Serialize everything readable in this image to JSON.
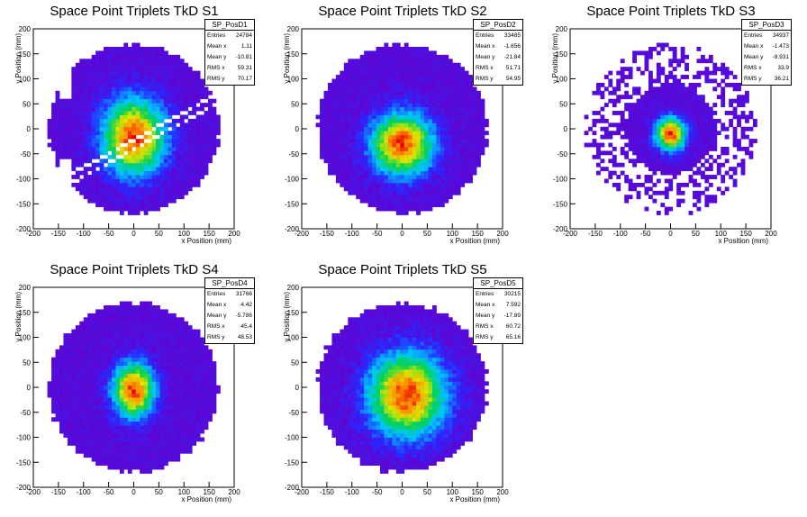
{
  "chart_data": [
    {
      "type": "heatmap",
      "title": "Space Point Triplets TkD S1",
      "xlabel": "x Position (mm)",
      "ylabel": "y Position (mm)",
      "xlim": [
        -200,
        200
      ],
      "ylim": [
        -200,
        200
      ],
      "xticks": [
        -200,
        -150,
        -100,
        -50,
        0,
        50,
        100,
        150,
        200
      ],
      "yticks": [
        200,
        150,
        100,
        50,
        0,
        -50,
        -100,
        -150,
        -200
      ],
      "stats": {
        "name": "SP_PosD1",
        "rows": [
          {
            "label": "Entries",
            "value": "24784"
          },
          {
            "label": "Mean x",
            "value": "1.11"
          },
          {
            "label": "Mean y",
            "value": "-10.81"
          },
          {
            "label": "RMS x",
            "value": "59.31"
          },
          {
            "label": "RMS y",
            "value": "70.17"
          }
        ]
      },
      "peak": [
        0,
        -15
      ],
      "spread": [
        45,
        55
      ]
    },
    {
      "type": "heatmap",
      "title": "Space Point Triplets TkD S2",
      "xlabel": "x Position (mm)",
      "ylabel": "y Position (mm)",
      "xlim": [
        -200,
        200
      ],
      "ylim": [
        -200,
        200
      ],
      "xticks": [
        -200,
        -150,
        -100,
        -50,
        0,
        50,
        100,
        150,
        200
      ],
      "yticks": [
        200,
        150,
        100,
        50,
        0,
        -50,
        -100,
        -150,
        -200
      ],
      "stats": {
        "name": "SP_PosD2",
        "rows": [
          {
            "label": "Entries",
            "value": "33485"
          },
          {
            "label": "Mean x",
            "value": "-1.656"
          },
          {
            "label": "Mean y",
            "value": "-21.84"
          },
          {
            "label": "RMS x",
            "value": "51.71"
          },
          {
            "label": "RMS y",
            "value": "54.95"
          }
        ]
      },
      "peak": [
        0,
        -30
      ],
      "spread": [
        45,
        45
      ]
    },
    {
      "type": "heatmap",
      "title": "Space Point Triplets TkD S3",
      "xlabel": "x Position (mm)",
      "ylabel": "y Position (mm)",
      "xlim": [
        -200,
        200
      ],
      "ylim": [
        -200,
        200
      ],
      "xticks": [
        -200,
        -150,
        -100,
        -50,
        0,
        50,
        100,
        150,
        200
      ],
      "yticks": [
        200,
        150,
        100,
        50,
        0,
        -50,
        -100,
        -150,
        -200
      ],
      "stats": {
        "name": "SP_PosD3",
        "rows": [
          {
            "label": "Entries",
            "value": "34937"
          },
          {
            "label": "Mean x",
            "value": "-1.473"
          },
          {
            "label": "Mean y",
            "value": "-9.931"
          },
          {
            "label": "RMS x",
            "value": "33.9"
          },
          {
            "label": "RMS y",
            "value": "36.21"
          }
        ]
      },
      "peak": [
        0,
        -10
      ],
      "spread": [
        22,
        24
      ]
    },
    {
      "type": "heatmap",
      "title": "Space Point Triplets TkD S4",
      "xlabel": "x Position (mm)",
      "ylabel": "y Position (mm)",
      "xlim": [
        -200,
        200
      ],
      "ylim": [
        -200,
        200
      ],
      "xticks": [
        -200,
        -150,
        -100,
        -50,
        0,
        50,
        100,
        150,
        200
      ],
      "yticks": [
        200,
        150,
        100,
        50,
        0,
        -50,
        -100,
        -150,
        -200
      ],
      "stats": {
        "name": "SP_PosD4",
        "rows": [
          {
            "label": "Entries",
            "value": "31766"
          },
          {
            "label": "Mean x",
            "value": "4.42"
          },
          {
            "label": "Mean y",
            "value": "-5.786"
          },
          {
            "label": "RMS x",
            "value": "45.4"
          },
          {
            "label": "RMS y",
            "value": "48.53"
          }
        ]
      },
      "peak": [
        0,
        -5
      ],
      "spread": [
        30,
        40
      ]
    },
    {
      "type": "heatmap",
      "title": "Space Point Triplets TkD S5",
      "xlabel": "x Position (mm)",
      "ylabel": "y Position (mm)",
      "xlim": [
        -200,
        200
      ],
      "ylim": [
        -200,
        200
      ],
      "xticks": [
        -200,
        -150,
        -100,
        -50,
        0,
        50,
        100,
        150,
        200
      ],
      "yticks": [
        200,
        150,
        100,
        50,
        0,
        -50,
        -100,
        -150,
        -200
      ],
      "stats": {
        "name": "SP_PosD5",
        "rows": [
          {
            "label": "Entries",
            "value": "30215"
          },
          {
            "label": "Mean x",
            "value": "7.592"
          },
          {
            "label": "Mean y",
            "value": "-17.89"
          },
          {
            "label": "RMS x",
            "value": "60.72"
          },
          {
            "label": "RMS y",
            "value": "65.16"
          }
        ]
      },
      "peak": [
        10,
        -15
      ],
      "spread": [
        55,
        60
      ]
    }
  ]
}
